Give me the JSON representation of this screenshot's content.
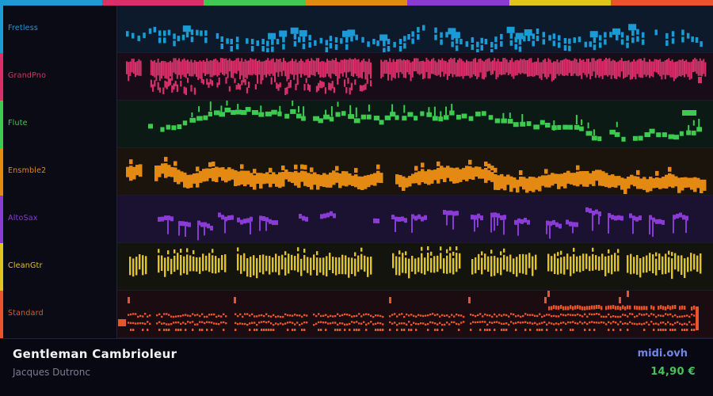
{
  "palette": [
    "#1a9bd6",
    "#d8316a",
    "#3ccb4f",
    "#e48a12",
    "#8a3bd4",
    "#e2c41e",
    "#e8552a"
  ],
  "tracks": [
    {
      "name": "Fretless",
      "color": "#1a9bd6",
      "bg": "#0d1a2c",
      "style": "pairs"
    },
    {
      "name": "GrandPno",
      "color": "#d8316a",
      "bg": "#180c18",
      "style": "dense"
    },
    {
      "name": "Flute",
      "color": "#3ccb4f",
      "bg": "#0c1a16",
      "style": "melody"
    },
    {
      "name": "Ensmble2",
      "color": "#e48a12",
      "bg": "#1a140c",
      "style": "blocks"
    },
    {
      "name": "AltoSax",
      "color": "#8a3bd4",
      "bg": "#1a1230",
      "style": "phrases"
    },
    {
      "name": "CleanGtr",
      "color": "#e2c41e",
      "bg": "#14140e",
      "style": "strum"
    },
    {
      "name": "Standard",
      "color": "#e8552a",
      "bg": "#1a0c10",
      "style": "drums"
    }
  ],
  "footer": {
    "title": "Gentleman Cambrioleur",
    "artist": "Jacques Dutronc",
    "site": "midi.ovh",
    "price": "14,90 €"
  }
}
